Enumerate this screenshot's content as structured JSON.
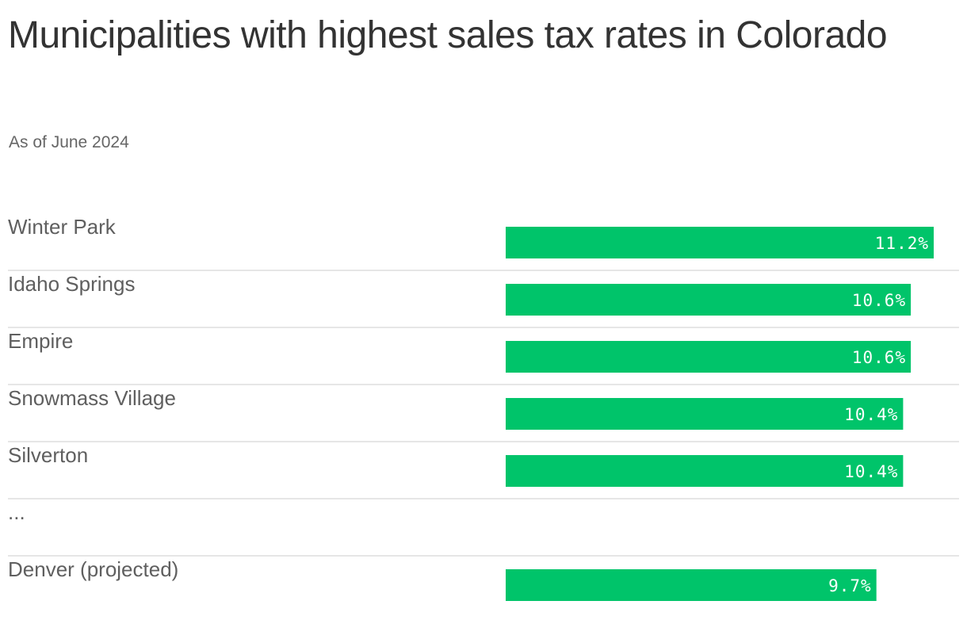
{
  "header": {
    "title": "Municipalities with highest sales tax rates in Colorado",
    "subtitle": "As of June 2024"
  },
  "colors": {
    "bar": "#00c46a",
    "label": "#5f5f5f",
    "divider": "#dddddd"
  },
  "chart_data": {
    "type": "bar",
    "orientation": "horizontal",
    "title": "Municipalities with highest sales tax rates in Colorado",
    "subtitle": "As of June 2024",
    "xlim": [
      0,
      11.2
    ],
    "grid": false,
    "rows": [
      {
        "label": "Winter Park",
        "value": 11.2,
        "value_label": "11.2%"
      },
      {
        "label": "Idaho Springs",
        "value": 10.6,
        "value_label": "10.6%"
      },
      {
        "label": "Empire",
        "value": 10.6,
        "value_label": "10.6%"
      },
      {
        "label": "Snowmass Village",
        "value": 10.4,
        "value_label": "10.4%"
      },
      {
        "label": "Silverton",
        "value": 10.4,
        "value_label": "10.4%"
      },
      {
        "label": "...",
        "value": null,
        "value_label": ""
      },
      {
        "label": "Denver (projected)",
        "value": 9.7,
        "value_label": "9.7%"
      }
    ]
  }
}
